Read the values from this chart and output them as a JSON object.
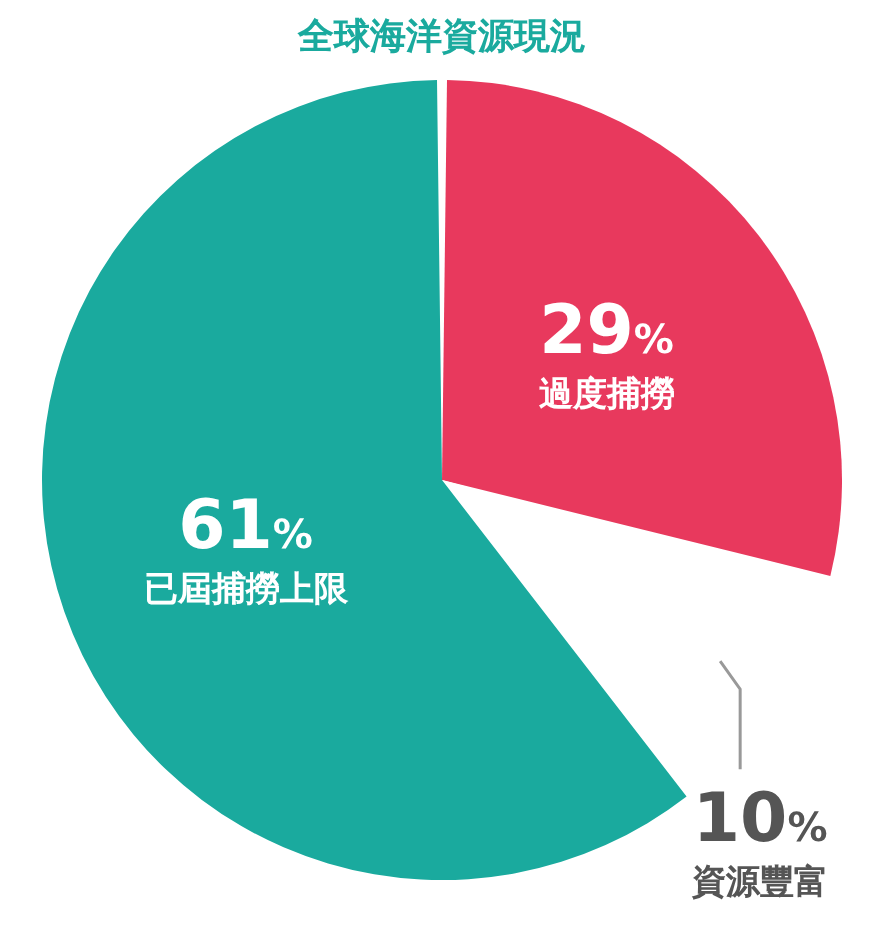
{
  "chart_data": {
    "type": "pie",
    "title": "全球海洋資源現況",
    "categories": [
      "過度捕撈",
      "資源豐富",
      "已屆捕撈上限"
    ],
    "values": [
      29,
      10,
      61
    ],
    "colors": [
      "#e8395d",
      "#ffffff",
      "#1aaa9e"
    ],
    "value_labels": [
      "29%",
      "10%",
      "61%"
    ]
  }
}
